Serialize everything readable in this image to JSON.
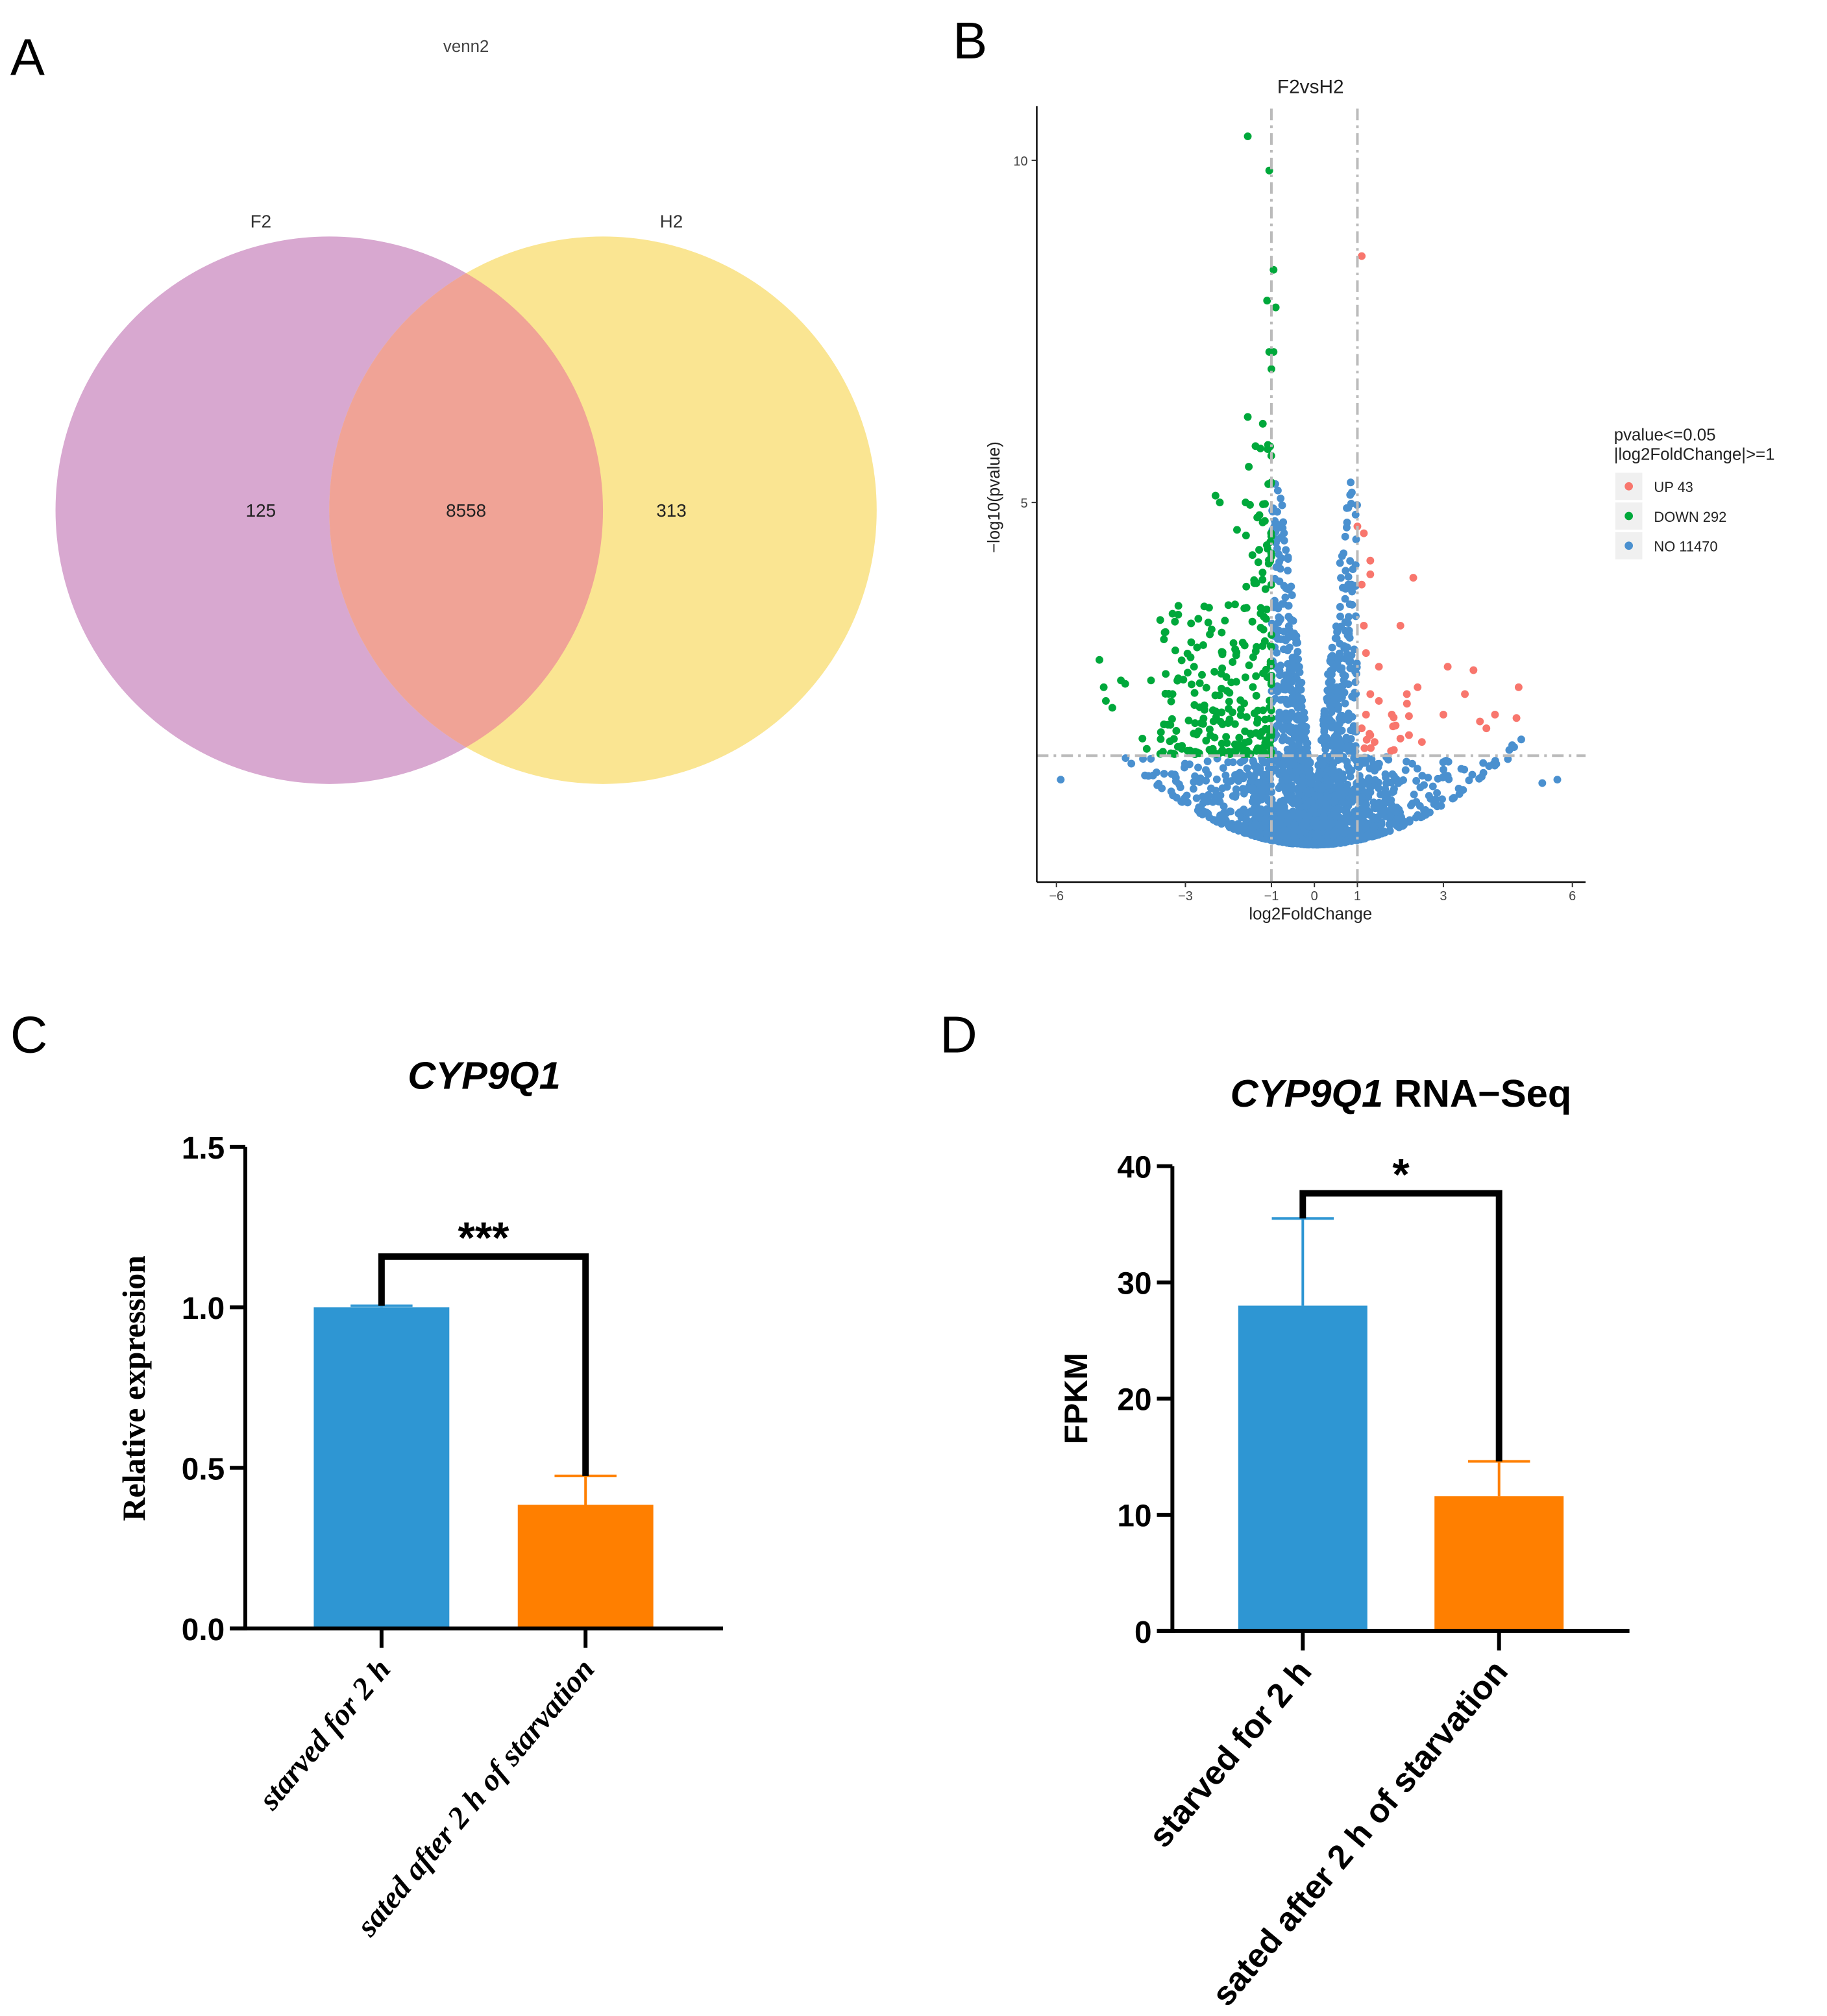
{
  "panels": {
    "a": "A",
    "b": "B",
    "c": "C",
    "d": "D"
  },
  "chart_data": [
    {
      "type": "venn",
      "title": "venn2",
      "sets": [
        {
          "name": "F2",
          "only": 125,
          "color": "#D8A8D0"
        },
        {
          "name": "H2",
          "only": 313,
          "color": "#FAE592"
        }
      ],
      "intersection": 8558,
      "intersection_color": "#F0A396"
    },
    {
      "type": "scatter",
      "title": "F2vsH2",
      "xlabel": "log2FoldChange",
      "ylabel": "−log10(pvalue)",
      "xlim": [
        -6.5,
        6.3
      ],
      "ylim": [
        -0.5,
        10.8
      ],
      "xticks": [
        "−6",
        "−3",
        "−1",
        "0",
        "1",
        "3",
        "6"
      ],
      "xtick_values": [
        -6,
        -3,
        -1,
        0,
        1,
        3,
        6
      ],
      "yticks": [
        "5",
        "10"
      ],
      "ytick_values": [
        5,
        10
      ],
      "thresholds": {
        "log2fc": [
          -1,
          1
        ],
        "neglog10p": 1.3
      },
      "legend": {
        "title_line1": "pvalue<=0.05",
        "title_line2": "|log2FoldChange|>=1",
        "placement": "right",
        "entries": [
          {
            "label": "UP 43",
            "color": "#F8766D",
            "count": 43
          },
          {
            "label": "DOWN 292",
            "color": "#00A83B",
            "count": 292
          },
          {
            "label": "NO 11470",
            "color": "#4A90CF",
            "count": 11470
          }
        ]
      },
      "notable_points": {
        "up": [
          [
            1.1,
            8.6
          ],
          [
            1.0,
            4.65
          ],
          [
            1.15,
            4.55
          ],
          [
            1.3,
            4.15
          ],
          [
            1.3,
            3.95
          ],
          [
            2.3,
            3.9
          ],
          [
            1.1,
            3.8
          ],
          [
            2.0,
            3.2
          ],
          [
            1.15,
            3.2
          ],
          [
            1.2,
            2.8
          ],
          [
            1.5,
            2.6
          ],
          [
            3.1,
            2.6
          ],
          [
            3.7,
            2.55
          ],
          [
            4.75,
            2.3
          ],
          [
            2.4,
            2.3
          ],
          [
            3.5,
            2.2
          ],
          [
            2.15,
            2.2
          ],
          [
            1.3,
            2.2
          ],
          [
            1.5,
            2.1
          ],
          [
            3.0,
            1.9
          ],
          [
            4.2,
            1.9
          ],
          [
            4.7,
            1.85
          ],
          [
            1.8,
            1.9
          ],
          [
            3.85,
            1.8
          ],
          [
            4.0,
            1.7
          ],
          [
            2.2,
            1.6
          ],
          [
            2.0,
            1.55
          ],
          [
            1.3,
            1.6
          ],
          [
            1.4,
            1.5
          ],
          [
            2.5,
            1.5
          ],
          [
            1.1,
            1.7
          ],
          [
            1.2,
            1.9
          ]
        ],
        "down": [
          [
            -1.55,
            10.35
          ],
          [
            -1.05,
            9.85
          ],
          [
            -0.95,
            8.4
          ],
          [
            -1.1,
            7.95
          ],
          [
            -0.9,
            7.85
          ],
          [
            -1.05,
            7.2
          ],
          [
            -0.95,
            7.2
          ],
          [
            -1.0,
            6.95
          ],
          [
            -1.55,
            6.25
          ],
          [
            -1.2,
            6.15
          ],
          [
            -2.3,
            5.1
          ],
          [
            -2.2,
            5.0
          ],
          [
            -1.6,
            5.0
          ],
          [
            -1.8,
            4.6
          ],
          [
            -2.0,
            3.5
          ],
          [
            -3.5,
            3.0
          ],
          [
            -2.7,
            3.3
          ],
          [
            -2.8,
            2.6
          ],
          [
            -5.0,
            2.7
          ],
          [
            -4.5,
            2.4
          ],
          [
            -4.4,
            2.35
          ],
          [
            -4.9,
            2.3
          ],
          [
            -4.85,
            2.1
          ],
          [
            -4.7,
            2.0
          ],
          [
            -3.3,
            2.2
          ],
          [
            -3.8,
            2.4
          ],
          [
            -3.35,
            1.75
          ],
          [
            -4.0,
            1.55
          ],
          [
            -3.9,
            1.4
          ]
        ]
      }
    },
    {
      "type": "bar",
      "title": "CYP9Q1",
      "ylabel": "Relative expression",
      "categories": [
        "starved for 2 h",
        "sated after 2 h of starvation"
      ],
      "values": [
        1.0,
        0.385
      ],
      "errors": [
        0.005,
        0.09
      ],
      "colors": [
        "#2E96D3",
        "#FF7F00"
      ],
      "ylim": [
        0,
        1.5
      ],
      "yticks": [
        "0.0",
        "0.5",
        "1.0",
        "1.5"
      ],
      "ytick_values": [
        0,
        0.5,
        1.0,
        1.5
      ],
      "significance": "***"
    },
    {
      "type": "bar",
      "title_italic": "CYP9Q1",
      "title_rest": " RNA−Seq",
      "ylabel": "FPKM",
      "categories": [
        "starved for 2 h",
        "sated after 2 h of starvation"
      ],
      "values": [
        28.0,
        11.6
      ],
      "errors": [
        7.5,
        3.0
      ],
      "colors": [
        "#2E96D3",
        "#FF7F00"
      ],
      "ylim": [
        0,
        40
      ],
      "yticks": [
        "0",
        "10",
        "20",
        "30",
        "40"
      ],
      "ytick_values": [
        0,
        10,
        20,
        30,
        40
      ],
      "significance": "*"
    }
  ]
}
